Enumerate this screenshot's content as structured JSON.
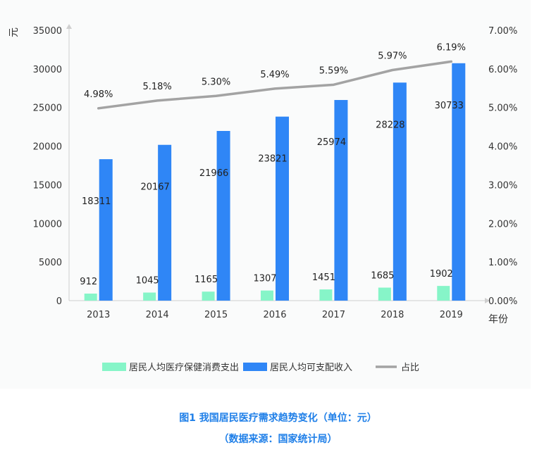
{
  "caption": {
    "line1": "图1 我国居民医疗需求趋势变化（单位：元）",
    "line2": "（数据来源：国家统计局）"
  },
  "chart_data": {
    "type": "bar",
    "categories": [
      "2013",
      "2014",
      "2015",
      "2016",
      "2017",
      "2018",
      "2019"
    ],
    "xlabel": "年份",
    "ylabel": "元",
    "ylim": [
      0,
      35000
    ],
    "yticks": [
      "0",
      "5000",
      "10000",
      "15000",
      "20000",
      "25000",
      "30000",
      "35000"
    ],
    "y2lim": [
      0,
      7
    ],
    "y2ticks": [
      "0.00%",
      "1.00%",
      "2.00%",
      "3.00%",
      "4.00%",
      "5.00%",
      "6.00%",
      "7.00%"
    ],
    "series": [
      {
        "name": "居民人均医疗保健消费支出",
        "type": "bar",
        "color": "#86f5c8",
        "values": [
          912,
          1045,
          1165,
          1307,
          1451,
          1685,
          1902
        ],
        "labels": [
          "912",
          "1045",
          "1165",
          "1307",
          "1451",
          "1685",
          "1902"
        ]
      },
      {
        "name": "居民人均可支配收入",
        "type": "bar",
        "color": "#2f86f6",
        "values": [
          18311,
          20167,
          21966,
          23821,
          25974,
          28228,
          30733
        ],
        "labels": [
          "18311",
          "20167",
          "21966",
          "23821",
          "25974",
          "28228",
          "30733"
        ]
      },
      {
        "name": "占比",
        "type": "line",
        "axis": "secondary",
        "color": "#a3a3a3",
        "values": [
          4.98,
          5.18,
          5.3,
          5.49,
          5.59,
          5.97,
          6.19
        ],
        "labels": [
          "4.98%",
          "5.18%",
          "5.30%",
          "5.49%",
          "5.59%",
          "5.97%",
          "6.19%"
        ]
      }
    ],
    "grid": false,
    "legend_position": "bottom"
  }
}
